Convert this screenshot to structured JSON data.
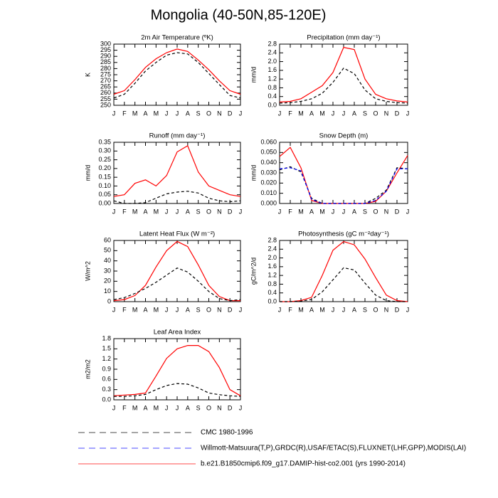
{
  "title": "Mongolia (40-50N,85-120E)",
  "legend": [
    {
      "name": "CMC 1980-1996",
      "color": "#000000",
      "dash": true
    },
    {
      "name": "Willmott-Matsuura(T,P),GRDC(R),USAF/ETAC(S),FLUXNET(LHF,GPP),MODIS(LAI)",
      "color": "#0000ff",
      "dash": true
    },
    {
      "name": "b.e21.B1850cmip6.f09_g17.DAMIP-hist-co2.001 (yrs 1990-2014)",
      "color": "#ff0000",
      "dash": false
    }
  ],
  "chart_data": [
    {
      "type": "line",
      "title": "2m Air Temperature (ºK)",
      "y_label": "K",
      "categories": [
        "J",
        "F",
        "M",
        "A",
        "M",
        "J",
        "J",
        "A",
        "S",
        "O",
        "N",
        "D",
        "J"
      ],
      "ylim": [
        250,
        300
      ],
      "yticks": [
        250,
        255,
        260,
        265,
        270,
        275,
        280,
        285,
        290,
        295,
        300
      ],
      "series": [
        {
          "color": "#ff0000",
          "dash": false,
          "values": [
            259,
            262,
            271,
            281,
            288,
            293,
            296,
            294,
            287,
            279,
            270,
            262,
            259
          ]
        },
        {
          "color": "#000000",
          "dash": true,
          "values": [
            256,
            259,
            268,
            278,
            285,
            291,
            293,
            292,
            285,
            276,
            267,
            258,
            256
          ]
        }
      ]
    },
    {
      "type": "line",
      "title": "Precipitation (mm day⁻¹)",
      "y_label": "mm/d",
      "categories": [
        "J",
        "F",
        "M",
        "A",
        "M",
        "J",
        "J",
        "A",
        "S",
        "O",
        "N",
        "D",
        "J"
      ],
      "ylim": [
        0,
        2.8
      ],
      "yticks": [
        {
          "value": 0,
          "label": "0.0"
        },
        0.4,
        0.8,
        1.2,
        1.6,
        {
          "value": 2,
          "label": "2.0"
        },
        2.4,
        2.8
      ],
      "series": [
        {
          "color": "#ff0000",
          "dash": false,
          "values": [
            0.15,
            0.18,
            0.3,
            0.6,
            0.9,
            1.5,
            2.65,
            2.55,
            1.2,
            0.5,
            0.3,
            0.2,
            0.15
          ]
        },
        {
          "color": "#000000",
          "dash": true,
          "values": [
            0.1,
            0.12,
            0.18,
            0.3,
            0.55,
            1.05,
            1.7,
            1.45,
            0.7,
            0.3,
            0.18,
            0.12,
            0.1
          ]
        }
      ]
    },
    {
      "type": "line",
      "title": "Runoff (mm day⁻¹)",
      "y_label": "mm/d",
      "categories": [
        "J",
        "F",
        "M",
        "A",
        "M",
        "J",
        "J",
        "A",
        "S",
        "O",
        "N",
        "D",
        "J"
      ],
      "ylim": [
        0,
        0.35
      ],
      "yticks": [
        {
          "value": 0,
          "label": "0.00"
        },
        0.05,
        {
          "value": 0.1,
          "label": "0.10"
        },
        0.15,
        {
          "value": 0.2,
          "label": "0.20"
        },
        0.25,
        {
          "value": 0.3,
          "label": "0.30"
        },
        0.35
      ],
      "series": [
        {
          "color": "#ff0000",
          "dash": false,
          "values": [
            0.04,
            0.05,
            0.115,
            0.135,
            0.1,
            0.16,
            0.295,
            0.33,
            0.18,
            0.1,
            0.075,
            0.05,
            0.04
          ]
        },
        {
          "color": "#000000",
          "dash": true,
          "values": [
            0.015,
            0,
            0,
            0.005,
            0.03,
            0.055,
            0.065,
            0.07,
            0.06,
            0.03,
            0.015,
            0.01,
            0.015
          ]
        }
      ]
    },
    {
      "type": "line",
      "title": "Snow Depth (m)",
      "y_label": "mm/d",
      "categories": [
        "J",
        "F",
        "M",
        "A",
        "M",
        "J",
        "J",
        "A",
        "S",
        "O",
        "N",
        "D",
        "J"
      ],
      "ylim": [
        0,
        0.06
      ],
      "yticks": [
        {
          "value": 0,
          "label": "0.000"
        },
        {
          "value": 0.01,
          "label": "0.010"
        },
        {
          "value": 0.02,
          "label": "0.020"
        },
        {
          "value": 0.03,
          "label": "0.030"
        },
        {
          "value": 0.04,
          "label": "0.040"
        },
        {
          "value": 0.05,
          "label": "0.050"
        },
        {
          "value": 0.06,
          "label": "0.060"
        }
      ],
      "series": [
        {
          "color": "#ff0000",
          "dash": false,
          "values": [
            0.046,
            0.055,
            0.035,
            0.003,
            0,
            0,
            0,
            0,
            0,
            0.002,
            0.012,
            0.03,
            0.047
          ]
        },
        {
          "color": "#000000",
          "dash": true,
          "values": [
            0.033,
            0.036,
            0.031,
            0.005,
            0,
            0,
            0,
            0,
            0,
            0.005,
            0.013,
            0.035,
            0.034
          ]
        },
        {
          "color": "#0000ff",
          "dash": true,
          "values": [
            0.034,
            0.035,
            0.032,
            0.004,
            0,
            0,
            0,
            0,
            0,
            0.003,
            0.012,
            0.034,
            0.034
          ]
        }
      ]
    },
    {
      "type": "line",
      "title": "Latent Heat Flux (W m⁻²)",
      "y_label": "W/m^2",
      "categories": [
        "J",
        "F",
        "M",
        "A",
        "M",
        "J",
        "J",
        "A",
        "S",
        "O",
        "N",
        "D",
        "J"
      ],
      "ylim": [
        0,
        60
      ],
      "yticks": [
        0,
        10,
        20,
        30,
        40,
        50,
        60
      ],
      "series": [
        {
          "color": "#ff0000",
          "dash": false,
          "values": [
            1,
            2,
            6,
            16,
            34,
            50,
            59,
            54,
            36,
            16,
            5,
            1,
            1
          ]
        },
        {
          "color": "#000000",
          "dash": true,
          "values": [
            2,
            4,
            8,
            13,
            19,
            26,
            33,
            29,
            20,
            10,
            3,
            1,
            2
          ]
        }
      ]
    },
    {
      "type": "line",
      "title": "Photosynthesis (gC m⁻²day⁻¹)",
      "y_label": "gC/m^2/d",
      "categories": [
        "J",
        "F",
        "M",
        "A",
        "M",
        "J",
        "J",
        "A",
        "S",
        "O",
        "N",
        "D",
        "J"
      ],
      "ylim": [
        0,
        2.8
      ],
      "yticks": [
        {
          "value": 0,
          "label": "0.0"
        },
        0.4,
        0.8,
        1.2,
        1.6,
        {
          "value": 2,
          "label": "2.0"
        },
        2.4,
        2.8
      ],
      "series": [
        {
          "color": "#ff0000",
          "dash": false,
          "values": [
            0,
            0,
            0.05,
            0.2,
            1.2,
            2.35,
            2.75,
            2.6,
            1.95,
            1.1,
            0.3,
            0.05,
            0
          ]
        },
        {
          "color": "#000000",
          "dash": true,
          "values": [
            0,
            0,
            0.02,
            0.1,
            0.45,
            1,
            1.55,
            1.45,
            0.85,
            0.3,
            0.05,
            0,
            0
          ]
        }
      ]
    },
    {
      "type": "line",
      "title": "Leaf Area Index",
      "y_label": "m2/m2",
      "categories": [
        "J",
        "F",
        "M",
        "A",
        "M",
        "J",
        "J",
        "A",
        "S",
        "O",
        "N",
        "D",
        "J"
      ],
      "ylim": [
        0,
        1.8
      ],
      "yticks": [
        {
          "value": 0,
          "label": "0.0"
        },
        0.3,
        0.6,
        0.9,
        1.2,
        1.5,
        1.8
      ],
      "series": [
        {
          "color": "#ff0000",
          "dash": false,
          "values": [
            0.12,
            0.14,
            0.16,
            0.2,
            0.7,
            1.22,
            1.5,
            1.6,
            1.6,
            1.42,
            0.95,
            0.3,
            0.12
          ]
        },
        {
          "color": "#000000",
          "dash": true,
          "values": [
            0.1,
            0.1,
            0.12,
            0.16,
            0.3,
            0.42,
            0.48,
            0.46,
            0.35,
            0.2,
            0.15,
            0.12,
            0.1
          ]
        }
      ]
    }
  ]
}
